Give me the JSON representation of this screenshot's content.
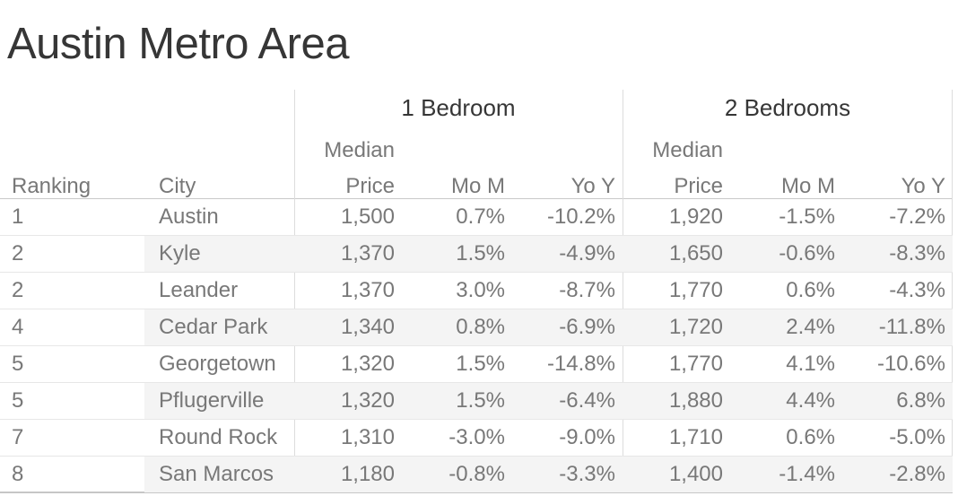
{
  "title": "Austin Metro Area",
  "headers": {
    "ranking": "Ranking",
    "city": "City",
    "median_line1": "Median",
    "median_line2": "Price",
    "mom": "Mo M",
    "yoy": "Yo Y"
  },
  "chart_data": {
    "type": "table",
    "title": "Austin Metro Area",
    "row_header_columns": [
      "Ranking",
      "City"
    ],
    "groups": [
      {
        "label": "1 Bedroom",
        "columns": [
          "Median Price",
          "Mo M",
          "Yo Y"
        ]
      },
      {
        "label": "2 Bedrooms",
        "columns": [
          "Median Price",
          "Mo M",
          "Yo Y"
        ]
      }
    ],
    "rows": [
      {
        "rank": "1",
        "city": "Austin",
        "p1_price": "1,500",
        "p1_mom": "0.7%",
        "p1_yoy": "-10.2%",
        "p2_price": "1,920",
        "p2_mom": "-1.5%",
        "p2_yoy": "-7.2%"
      },
      {
        "rank": "2",
        "city": "Kyle",
        "p1_price": "1,370",
        "p1_mom": "1.5%",
        "p1_yoy": "-4.9%",
        "p2_price": "1,650",
        "p2_mom": "-0.6%",
        "p2_yoy": "-8.3%"
      },
      {
        "rank": "2",
        "city": "Leander",
        "p1_price": "1,370",
        "p1_mom": "3.0%",
        "p1_yoy": "-8.7%",
        "p2_price": "1,770",
        "p2_mom": "0.6%",
        "p2_yoy": "-4.3%"
      },
      {
        "rank": "4",
        "city": "Cedar Park",
        "p1_price": "1,340",
        "p1_mom": "0.8%",
        "p1_yoy": "-6.9%",
        "p2_price": "1,720",
        "p2_mom": "2.4%",
        "p2_yoy": "-11.8%"
      },
      {
        "rank": "5",
        "city": "Georgetown",
        "p1_price": "1,320",
        "p1_mom": "1.5%",
        "p1_yoy": "-14.8%",
        "p2_price": "1,770",
        "p2_mom": "4.1%",
        "p2_yoy": "-10.6%"
      },
      {
        "rank": "5",
        "city": "Pflugerville",
        "p1_price": "1,320",
        "p1_mom": "1.5%",
        "p1_yoy": "-6.4%",
        "p2_price": "1,880",
        "p2_mom": "4.4%",
        "p2_yoy": "6.8%"
      },
      {
        "rank": "7",
        "city": "Round Rock",
        "p1_price": "1,310",
        "p1_mom": "-3.0%",
        "p1_yoy": "-9.0%",
        "p2_price": "1,710",
        "p2_mom": "0.6%",
        "p2_yoy": "-5.0%"
      },
      {
        "rank": "8",
        "city": "San Marcos",
        "p1_price": "1,180",
        "p1_mom": "-0.8%",
        "p1_yoy": "-3.3%",
        "p2_price": "1,400",
        "p2_mom": "-1.4%",
        "p2_yoy": "-2.8%"
      }
    ]
  },
  "colors": {
    "title_text": "#363636",
    "header_text": "#363636",
    "subheader_text": "#989898",
    "body_text": "#787878",
    "row_stripe": "#f4f4f4",
    "row_separator": "#e7e7e7",
    "pane_divider": "#dcdcdc",
    "header_underline": "#c9c9c9",
    "bottom_rule": "#c6c6c6",
    "background": "#ffffff"
  }
}
